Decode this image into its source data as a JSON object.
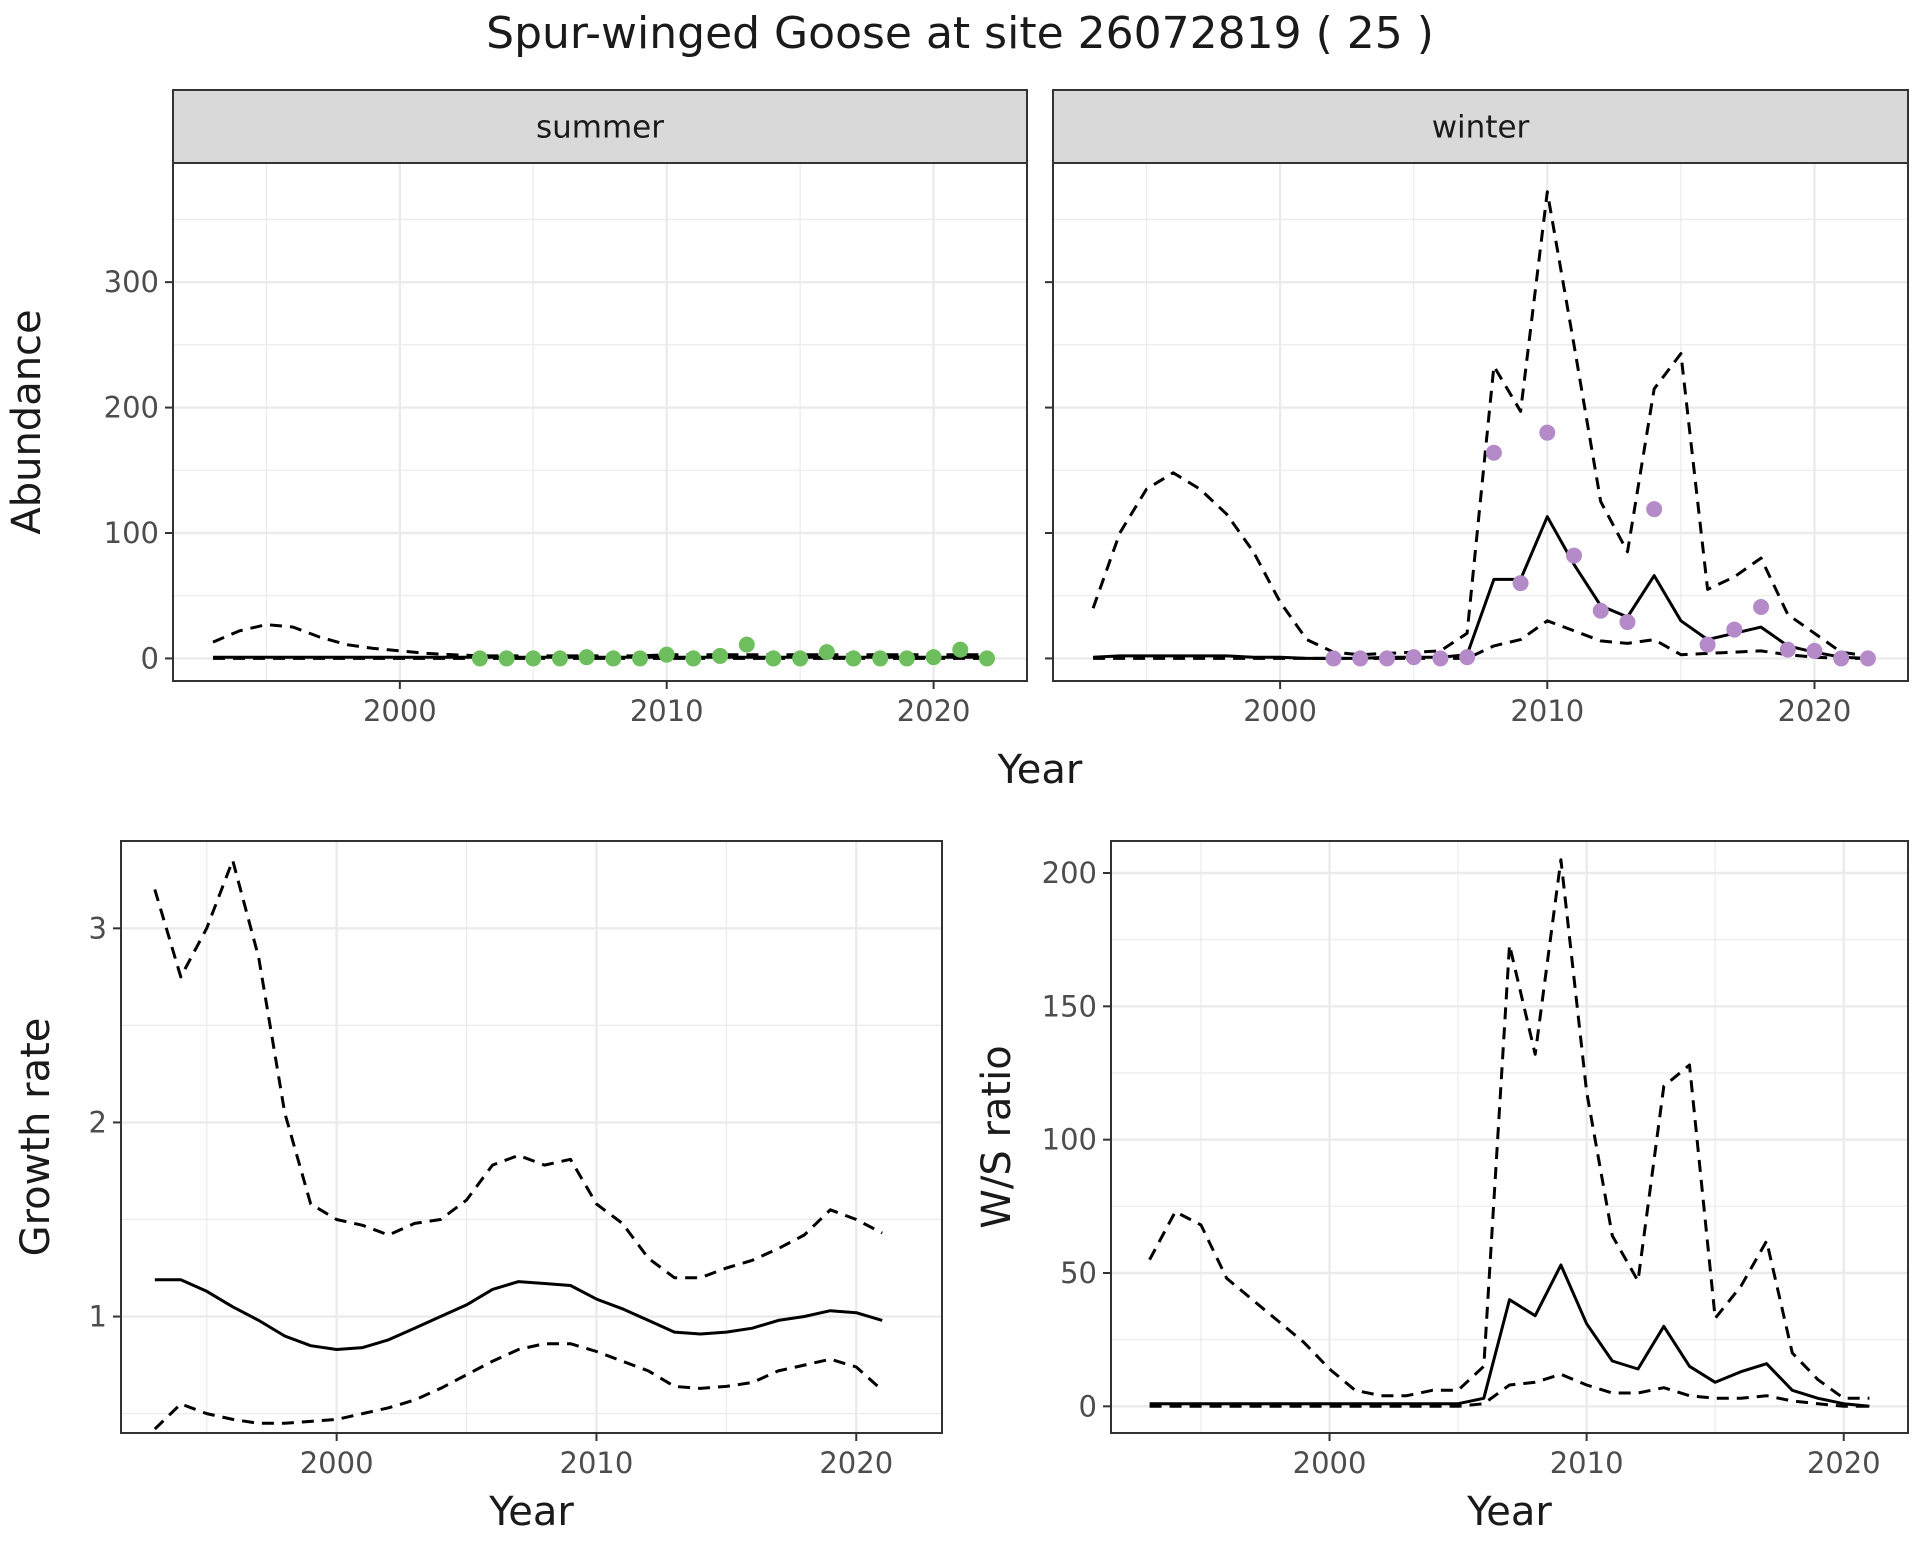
{
  "title": "Spur-winged Goose at site 26072819 ( 25 )",
  "colors": {
    "summer_points": "#6dbe5c",
    "winter_points": "#b58ac8",
    "line": "#000000",
    "grid": "#ebebeb",
    "strip_bg": "#d9d9d9",
    "panel_border": "#333333"
  },
  "chart_data": [
    {
      "type": "line",
      "facet": "summer",
      "strip_label": "summer",
      "xlabel": "Year",
      "ylabel": "Abundance",
      "xlim": [
        1991.5,
        2023.5
      ],
      "ylim": [
        -18,
        395
      ],
      "xticks": [
        2000,
        2010,
        2020
      ],
      "yticks": [
        0,
        100,
        200,
        300
      ],
      "grid": true,
      "x": [
        1993,
        1994,
        1995,
        1996,
        1997,
        1998,
        1999,
        2000,
        2001,
        2002,
        2003,
        2004,
        2005,
        2006,
        2007,
        2008,
        2009,
        2010,
        2011,
        2012,
        2013,
        2014,
        2015,
        2016,
        2017,
        2018,
        2019,
        2020,
        2021,
        2022
      ],
      "series": [
        {
          "role": "estimate",
          "style": "solid",
          "values": [
            1,
            1,
            1,
            1,
            1,
            1,
            1,
            1,
            1,
            1,
            1,
            1,
            1,
            1,
            1,
            1,
            1,
            1,
            1,
            1,
            1,
            1,
            1,
            1,
            1,
            1,
            1,
            1,
            1,
            1
          ]
        },
        {
          "role": "upper",
          "style": "dashed",
          "values": [
            13,
            22,
            27,
            25,
            17,
            11,
            8,
            6,
            4,
            3,
            2,
            2,
            2,
            2,
            2,
            2,
            2,
            3,
            3,
            3,
            3,
            3,
            3,
            3,
            3,
            3,
            3,
            3,
            3,
            3
          ]
        },
        {
          "role": "lower",
          "style": "dashed",
          "values": [
            0,
            0,
            0,
            0,
            0,
            0,
            0,
            0,
            0,
            0,
            0,
            0,
            0,
            0,
            0,
            0,
            0,
            0,
            0,
            0,
            0,
            0,
            0,
            0,
            0,
            0,
            0,
            0,
            0,
            0
          ]
        }
      ],
      "points": {
        "x": [
          2003,
          2004,
          2005,
          2006,
          2007,
          2008,
          2009,
          2010,
          2011,
          2012,
          2013,
          2014,
          2015,
          2016,
          2017,
          2018,
          2019,
          2020,
          2021,
          2022
        ],
        "y": [
          0,
          0,
          0,
          0,
          1,
          0,
          0,
          3,
          0,
          2,
          11,
          0,
          0,
          5,
          0,
          0,
          0,
          1,
          7,
          0
        ]
      }
    },
    {
      "type": "line",
      "facet": "winter",
      "strip_label": "winter",
      "xlabel": "Year",
      "ylabel": "Abundance",
      "xlim": [
        1991.5,
        2023.5
      ],
      "ylim": [
        -18,
        395
      ],
      "xticks": [
        2000,
        2010,
        2020
      ],
      "yticks": [
        0,
        100,
        200,
        300
      ],
      "grid": true,
      "x": [
        1993,
        1994,
        1995,
        1996,
        1997,
        1998,
        1999,
        2000,
        2001,
        2002,
        2003,
        2004,
        2005,
        2006,
        2007,
        2008,
        2009,
        2010,
        2011,
        2012,
        2013,
        2014,
        2015,
        2016,
        2017,
        2018,
        2019,
        2020,
        2021,
        2022
      ],
      "series": [
        {
          "role": "estimate",
          "style": "solid",
          "values": [
            1,
            2,
            2,
            2,
            2,
            2,
            1,
            1,
            0,
            0,
            0,
            1,
            1,
            1,
            3,
            63,
            63,
            113,
            75,
            42,
            33,
            66,
            30,
            15,
            20,
            25,
            10,
            5,
            1,
            0
          ]
        },
        {
          "role": "upper",
          "style": "dashed",
          "values": [
            40,
            100,
            135,
            148,
            135,
            115,
            85,
            45,
            15,
            5,
            3,
            4,
            5,
            6,
            20,
            233,
            197,
            372,
            250,
            125,
            85,
            215,
            243,
            55,
            65,
            80,
            35,
            20,
            5,
            2
          ]
        },
        {
          "role": "lower",
          "style": "dashed",
          "values": [
            0,
            0,
            0,
            0,
            0,
            0,
            0,
            0,
            0,
            0,
            0,
            0,
            0,
            0,
            0,
            10,
            15,
            30,
            22,
            14,
            12,
            15,
            3,
            4,
            5,
            6,
            3,
            1,
            0,
            0
          ]
        }
      ],
      "points": {
        "x": [
          2002,
          2003,
          2004,
          2005,
          2006,
          2007,
          2008,
          2009,
          2010,
          2011,
          2012,
          2013,
          2014,
          2015,
          2016,
          2017,
          2018,
          2019,
          2020,
          2021,
          2022
        ],
        "y": [
          0,
          0,
          0,
          1,
          0,
          1,
          164,
          60,
          180,
          82,
          38,
          29,
          119,
          null,
          11,
          23,
          41,
          7,
          6,
          0,
          0
        ]
      }
    },
    {
      "type": "line",
      "xlabel": "Year",
      "ylabel": "Growth rate",
      "xlim": [
        1991.7,
        2023.3
      ],
      "ylim": [
        0.4,
        3.45
      ],
      "xticks": [
        2000,
        2010,
        2020
      ],
      "yticks": [
        1,
        2,
        3
      ],
      "grid": true,
      "x": [
        1993,
        1994,
        1995,
        1996,
        1997,
        1998,
        1999,
        2000,
        2001,
        2002,
        2003,
        2004,
        2005,
        2006,
        2007,
        2008,
        2009,
        2010,
        2011,
        2012,
        2013,
        2014,
        2015,
        2016,
        2017,
        2018,
        2019,
        2020,
        2021
      ],
      "series": [
        {
          "role": "estimate",
          "style": "solid",
          "values": [
            1.19,
            1.19,
            1.13,
            1.05,
            0.98,
            0.9,
            0.85,
            0.83,
            0.84,
            0.88,
            0.94,
            1.0,
            1.06,
            1.14,
            1.18,
            1.17,
            1.16,
            1.09,
            1.04,
            0.98,
            0.92,
            0.91,
            0.92,
            0.94,
            0.98,
            1.0,
            1.03,
            1.02,
            0.98
          ]
        },
        {
          "role": "upper",
          "style": "dashed",
          "values": [
            3.2,
            2.75,
            3.0,
            3.35,
            2.85,
            2.05,
            1.58,
            1.5,
            1.47,
            1.42,
            1.48,
            1.5,
            1.6,
            1.78,
            1.83,
            1.78,
            1.81,
            1.58,
            1.48,
            1.3,
            1.2,
            1.2,
            1.25,
            1.29,
            1.35,
            1.42,
            1.55,
            1.5,
            1.43
          ]
        },
        {
          "role": "lower",
          "style": "dashed",
          "values": [
            0.42,
            0.55,
            0.5,
            0.47,
            0.45,
            0.45,
            0.46,
            0.47,
            0.5,
            0.53,
            0.57,
            0.63,
            0.7,
            0.77,
            0.83,
            0.86,
            0.86,
            0.82,
            0.77,
            0.72,
            0.64,
            0.63,
            0.64,
            0.66,
            0.72,
            0.75,
            0.78,
            0.74,
            0.62
          ]
        }
      ]
    },
    {
      "type": "line",
      "xlabel": "Year",
      "ylabel": "W/S ratio",
      "xlim": [
        1991.5,
        2022.5
      ],
      "ylim": [
        -10,
        212
      ],
      "xticks": [
        2000,
        2010,
        2020
      ],
      "yticks": [
        0,
        50,
        100,
        150,
        200
      ],
      "grid": true,
      "x": [
        1993,
        1994,
        1995,
        1996,
        1997,
        1998,
        1999,
        2000,
        2001,
        2002,
        2003,
        2004,
        2005,
        2006,
        2007,
        2008,
        2009,
        2010,
        2011,
        2012,
        2013,
        2014,
        2015,
        2016,
        2017,
        2018,
        2019,
        2020,
        2021
      ],
      "series": [
        {
          "role": "estimate",
          "style": "solid",
          "values": [
            1,
            1,
            1,
            1,
            1,
            1,
            1,
            1,
            1,
            1,
            1,
            1,
            1,
            3,
            40,
            34,
            53,
            31,
            17,
            14,
            30,
            15,
            9,
            13,
            16,
            6,
            3,
            1,
            0
          ]
        },
        {
          "role": "upper",
          "style": "dashed",
          "values": [
            55,
            73,
            68,
            48,
            40,
            32,
            24,
            14,
            6,
            4,
            4,
            6,
            6,
            15,
            173,
            132,
            205,
            118,
            64,
            47,
            120,
            128,
            33,
            45,
            62,
            20,
            10,
            3,
            3
          ]
        },
        {
          "role": "lower",
          "style": "dashed",
          "values": [
            0,
            0,
            0,
            0,
            0,
            0,
            0,
            0,
            0,
            0,
            0,
            0,
            0,
            1,
            8,
            9,
            12,
            8,
            5,
            5,
            7,
            4,
            3,
            3,
            4,
            2,
            1,
            0,
            0
          ]
        }
      ]
    }
  ]
}
